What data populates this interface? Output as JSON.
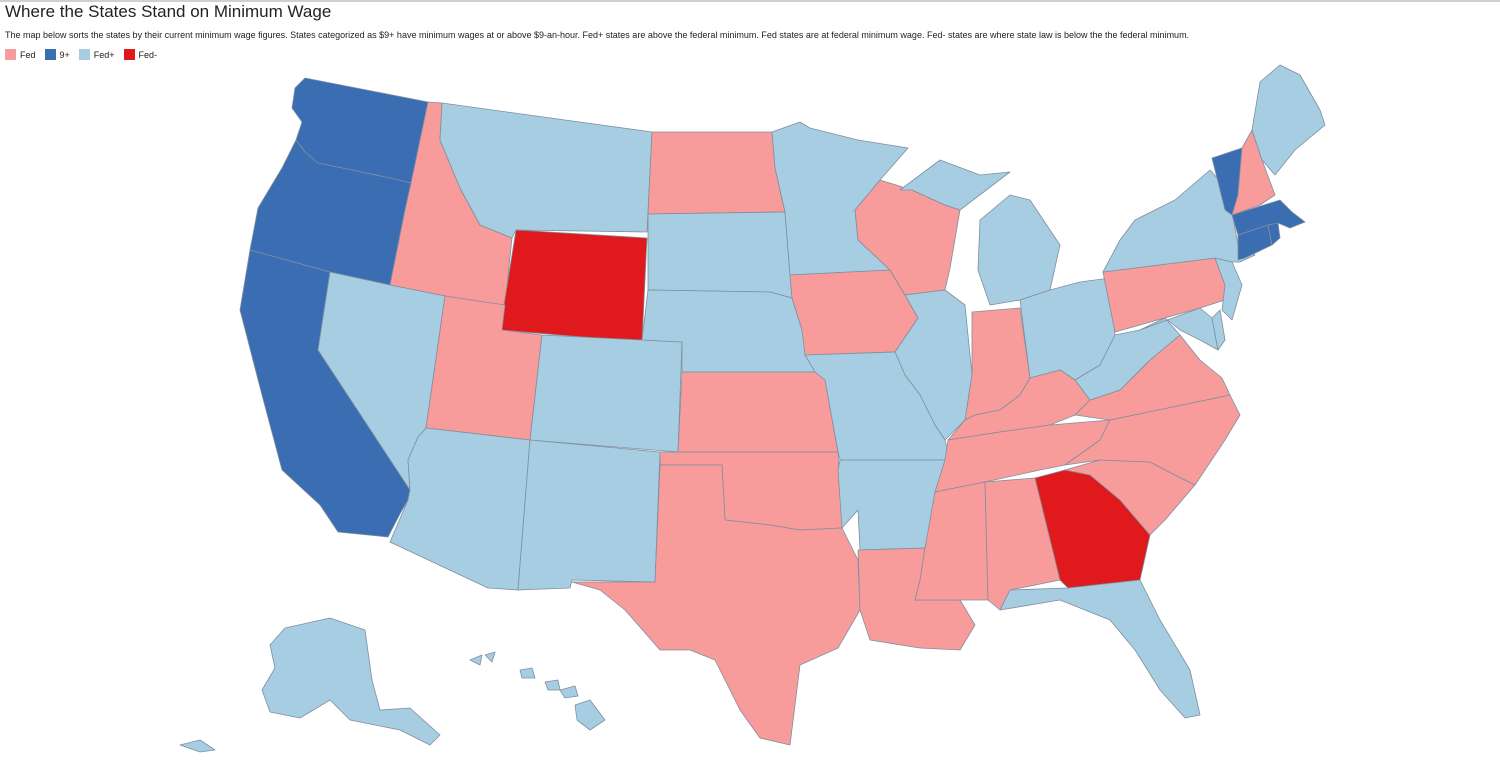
{
  "header": {
    "title": "Where the States Stand on Minimum Wage",
    "subtitle": "The map below sorts the states by their current minimum wage figures. States categorized as $9+ have minimum wages at or above $9-an-hour. Fed+ states are above the federal minimum. Fed states are at federal minimum wage. Fed- states are where state law is below the the federal minimum."
  },
  "legend": [
    {
      "key": "fed",
      "label": "Fed",
      "color": "#f79b9b"
    },
    {
      "key": "nine_plus",
      "label": "9+",
      "color": "#3a6db1"
    },
    {
      "key": "fed_plus",
      "label": "Fed+",
      "color": "#a6cde2"
    },
    {
      "key": "fed_minus",
      "label": "Fed-",
      "color": "#e0191d"
    }
  ],
  "states": {
    "WA": "nine_plus",
    "OR": "nine_plus",
    "CA": "nine_plus",
    "VT": "nine_plus",
    "MA": "nine_plus",
    "CT": "nine_plus",
    "RI": "nine_plus",
    "WY": "fed_minus",
    "GA": "fed_minus",
    "ID": "fed",
    "UT": "fed",
    "ND": "fed",
    "KS": "fed",
    "OK": "fed",
    "TX": "fed",
    "IA": "fed",
    "WI": "fed",
    "LA": "fed",
    "MS": "fed",
    "AL": "fed",
    "TN": "fed",
    "KY": "fed",
    "IN": "fed",
    "PA": "fed",
    "VA": "fed",
    "NC": "fed",
    "SC": "fed",
    "NH": "fed",
    "NV": "fed_plus",
    "AZ": "fed_plus",
    "MT": "fed_plus",
    "CO": "fed_plus",
    "NM": "fed_plus",
    "SD": "fed_plus",
    "NE": "fed_plus",
    "MN": "fed_plus",
    "MO": "fed_plus",
    "AR": "fed_plus",
    "IL": "fed_plus",
    "MI": "fed_plus",
    "OH": "fed_plus",
    "WV": "fed_plus",
    "NY": "fed_plus",
    "NJ": "fed_plus",
    "DE": "fed_plus",
    "MD": "fed_plus",
    "ME": "fed_plus",
    "FL": "fed_plus",
    "AK": "fed_plus",
    "HI": "fed_plus"
  }
}
